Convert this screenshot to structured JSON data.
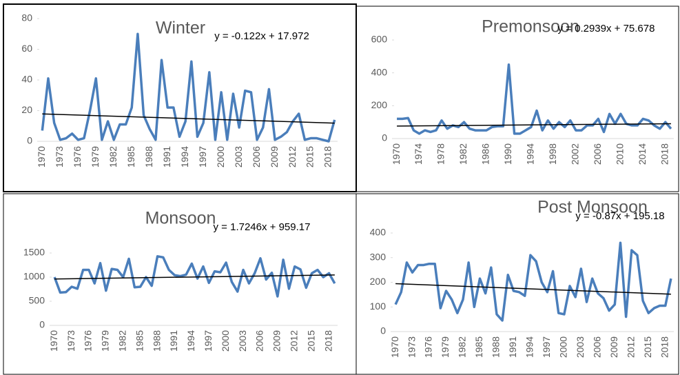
{
  "chart_data": [
    {
      "type": "line",
      "title": "Winter",
      "color": "#4a7ebb",
      "trend": {
        "slope": -0.122,
        "intercept": 17.972,
        "label": "y = -0.122x + 17.972"
      },
      "categories": [
        "1970",
        null,
        null,
        "1973",
        null,
        null,
        "1976",
        null,
        null,
        "1979",
        null,
        null,
        "1982",
        null,
        null,
        "1985",
        null,
        null,
        "1988",
        null,
        null,
        "1991",
        null,
        null,
        "1994",
        null,
        null,
        "1997",
        null,
        null,
        "2000",
        null,
        null,
        "2003",
        null,
        null,
        "2006",
        null,
        null,
        "2009",
        null,
        null,
        "2012",
        null,
        null,
        "2015",
        null,
        null,
        "2018",
        null
      ],
      "values": [
        7,
        41,
        12,
        1,
        2,
        5,
        1,
        2,
        20,
        41,
        1,
        13,
        1,
        11,
        11,
        22,
        70,
        17,
        8,
        1,
        53,
        22,
        22,
        3,
        13,
        52,
        3,
        12,
        45,
        1,
        32,
        1,
        31,
        9,
        33,
        32,
        1,
        9,
        34,
        1,
        3,
        6,
        13,
        18,
        1,
        2,
        2,
        1,
        0,
        14
      ],
      "ylim": [
        0,
        80
      ],
      "yticks": [
        0,
        20,
        40,
        60,
        80
      ]
    },
    {
      "type": "line",
      "title": "Premonsoon",
      "color": "#4a7ebb",
      "trend": {
        "slope": 0.2939,
        "intercept": 75.678,
        "label": "y = 0.2939x + 75.678"
      },
      "categories": [
        "1970",
        null,
        null,
        null,
        "1974",
        null,
        null,
        null,
        "1978",
        null,
        null,
        null,
        "1982",
        null,
        null,
        null,
        "1986",
        null,
        null,
        null,
        "1990",
        null,
        null,
        null,
        "1994",
        null,
        null,
        null,
        "1998",
        null,
        null,
        null,
        "2002",
        null,
        null,
        null,
        "2006",
        null,
        null,
        null,
        "2010",
        null,
        null,
        null,
        "2014",
        null,
        null,
        null,
        "2018",
        null
      ],
      "values": [
        120,
        120,
        125,
        50,
        30,
        50,
        40,
        50,
        110,
        60,
        80,
        70,
        100,
        60,
        50,
        50,
        50,
        70,
        75,
        75,
        450,
        30,
        30,
        50,
        70,
        170,
        50,
        110,
        60,
        100,
        70,
        110,
        50,
        50,
        80,
        80,
        120,
        40,
        150,
        90,
        150,
        90,
        80,
        80,
        120,
        110,
        80,
        60,
        100,
        60
      ],
      "ylim": [
        0,
        600
      ],
      "yticks": [
        0,
        200,
        400,
        600
      ]
    },
    {
      "type": "line",
      "title": "Monsoon",
      "color": "#4a7ebb",
      "trend": {
        "slope": 1.7246,
        "intercept": 959.17,
        "label": "y = 1.7246x + 959.17"
      },
      "categories": [
        "1970",
        null,
        null,
        "1973",
        null,
        null,
        "1976",
        null,
        null,
        "1979",
        null,
        null,
        "1982",
        null,
        null,
        "1985",
        null,
        null,
        "1988",
        null,
        null,
        "1991",
        null,
        null,
        "1994",
        null,
        null,
        "1997",
        null,
        null,
        "2000",
        null,
        null,
        "2003",
        null,
        null,
        "2006",
        null,
        null,
        "2009",
        null,
        null,
        "2012",
        null,
        null,
        "2015",
        null,
        null,
        "2018",
        null
      ],
      "values": [
        1000,
        680,
        690,
        800,
        760,
        1150,
        1150,
        870,
        1290,
        720,
        1170,
        1150,
        1000,
        1380,
        790,
        800,
        1000,
        820,
        1430,
        1410,
        1150,
        1040,
        1020,
        1050,
        1280,
        970,
        1220,
        880,
        1120,
        1100,
        1300,
        900,
        700,
        1150,
        870,
        1080,
        1390,
        950,
        1090,
        600,
        1360,
        760,
        1220,
        1160,
        780,
        1080,
        1150,
        1000,
        1080,
        870
      ],
      "ylim": [
        0,
        1500
      ],
      "yticks": [
        0,
        500,
        1000,
        1500
      ]
    },
    {
      "type": "line",
      "title": "Post Monsoon",
      "color": "#4a7ebb",
      "trend": {
        "slope": -0.87,
        "intercept": 195.18,
        "label": "y = -0.87x + 195.18"
      },
      "categories": [
        "1970",
        null,
        null,
        "1973",
        null,
        null,
        "1976",
        null,
        null,
        "1979",
        null,
        null,
        "1982",
        null,
        null,
        "1985",
        null,
        null,
        "1988",
        null,
        null,
        "1991",
        null,
        null,
        "1994",
        null,
        null,
        "1997",
        null,
        null,
        "2000",
        null,
        null,
        "2003",
        null,
        null,
        "2006",
        null,
        null,
        "2009",
        null,
        null,
        "2012",
        null,
        null,
        "2015",
        null,
        null,
        "2018",
        null
      ],
      "values": [
        110,
        160,
        280,
        240,
        270,
        270,
        275,
        275,
        95,
        165,
        130,
        75,
        130,
        280,
        100,
        215,
        155,
        260,
        70,
        45,
        230,
        165,
        160,
        145,
        310,
        285,
        200,
        160,
        245,
        75,
        70,
        185,
        140,
        255,
        120,
        215,
        155,
        135,
        85,
        110,
        360,
        60,
        330,
        310,
        125,
        75,
        95,
        105,
        105,
        215
      ],
      "ylim": [
        0,
        400
      ],
      "yticks": [
        0,
        100,
        200,
        300,
        400
      ]
    }
  ]
}
